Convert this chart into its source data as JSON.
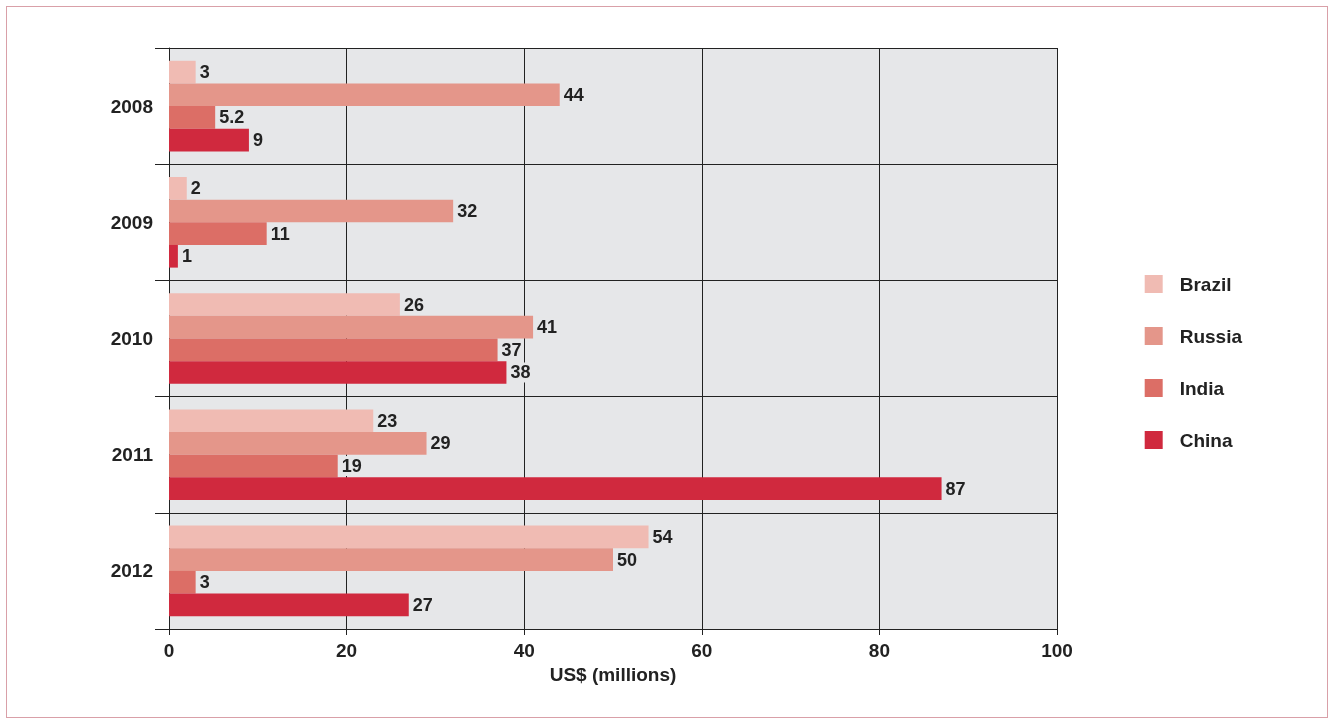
{
  "chart_data": {
    "type": "bar",
    "orientation": "horizontal",
    "xlabel": "US$ (millions)",
    "categories": [
      "2008",
      "2009",
      "2010",
      "2011",
      "2012"
    ],
    "series": [
      {
        "name": "Brazil",
        "color": "#f0bbb3",
        "values": [
          3,
          2,
          26,
          23,
          54
        ]
      },
      {
        "name": "Russia",
        "color": "#e4968a",
        "values": [
          44,
          32,
          41,
          29,
          50
        ]
      },
      {
        "name": "India",
        "color": "#dc6e66",
        "values": [
          5.2,
          11,
          37,
          19,
          3
        ]
      },
      {
        "name": "China",
        "color": "#d0293e",
        "values": [
          9,
          1,
          38,
          87,
          27
        ]
      }
    ],
    "xlim": [
      0,
      100
    ],
    "xticks": [
      0,
      20,
      40,
      60,
      80,
      100
    ],
    "grid": true,
    "legend": "right",
    "data_labels": true
  }
}
